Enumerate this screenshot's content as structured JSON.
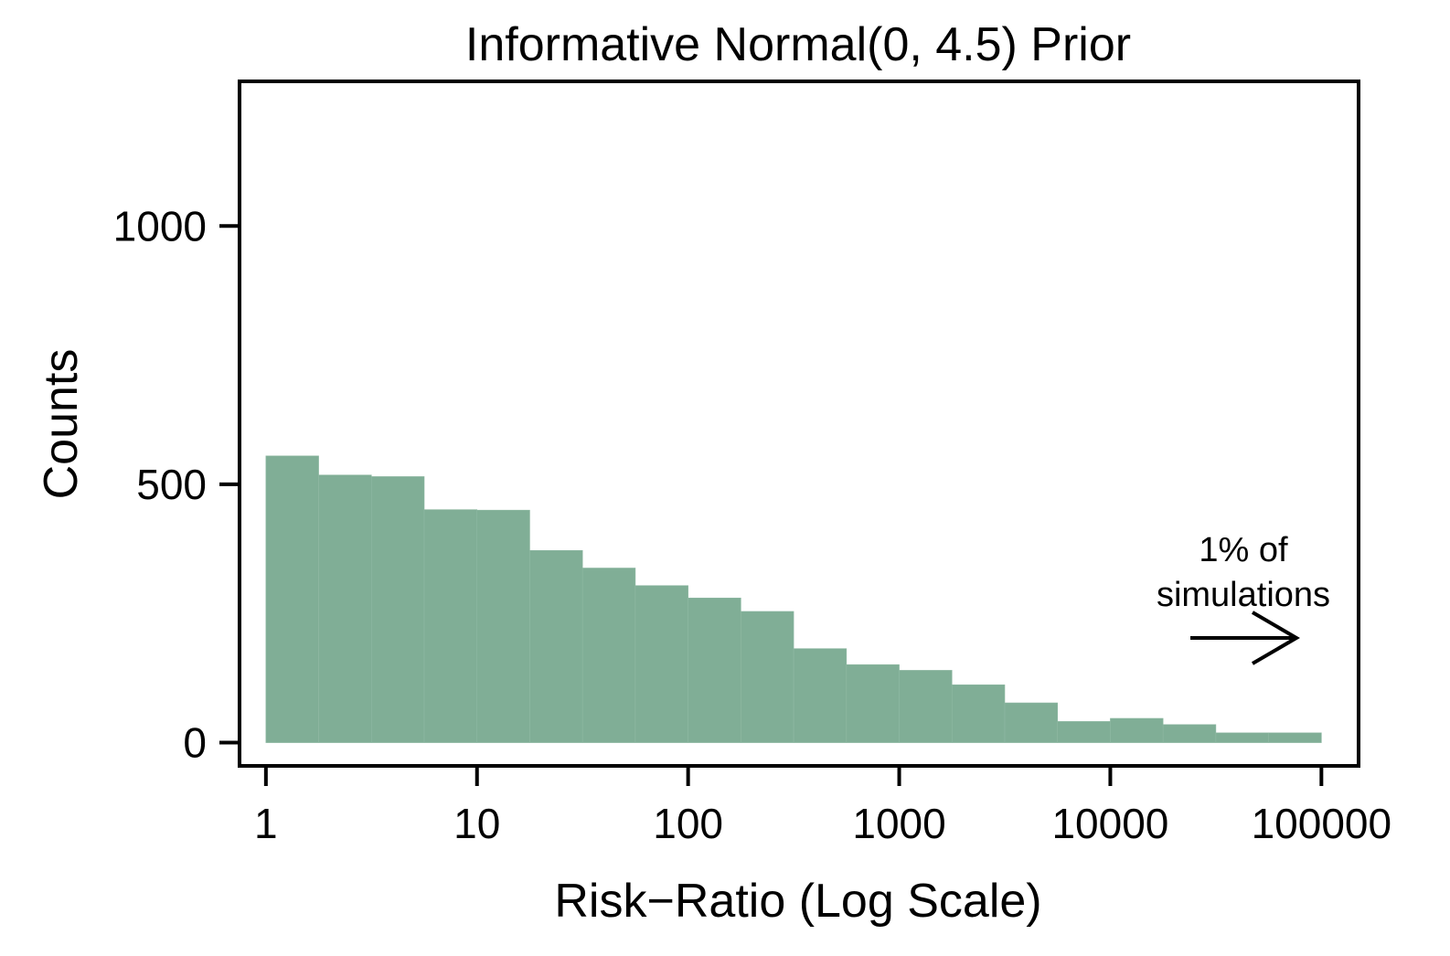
{
  "chart_data": {
    "type": "bar",
    "title": "Informative Normal(0, 4.5) Prior",
    "xlabel": "Risk−Ratio (Log Scale)",
    "ylabel": "Counts",
    "x_scale": "log10",
    "xlim": [
      0.75,
      150000
    ],
    "ylim": [
      -45,
      1280
    ],
    "xticks": [
      1,
      10,
      100,
      1000,
      10000,
      100000
    ],
    "xtick_labels": [
      "1",
      "10",
      "100",
      "1000",
      "10000",
      "100000"
    ],
    "yticks": [
      0,
      500,
      1000
    ],
    "ytick_labels": [
      "0",
      "500",
      "1000"
    ],
    "bin_edges": [
      1,
      1.778,
      3.162,
      5.623,
      10,
      17.78,
      31.62,
      56.23,
      100,
      177.8,
      316.2,
      562.3,
      1000,
      1778,
      3162,
      5623,
      10000,
      17783,
      31623,
      56234,
      100000
    ],
    "values": [
      555,
      518,
      515,
      451,
      450,
      372,
      338,
      304,
      280,
      254,
      182,
      151,
      140,
      112,
      77,
      41,
      47,
      35,
      19,
      19
    ],
    "bar_color": "#80ae96",
    "grid": false,
    "annotation": {
      "lines": [
        "1% of",
        "simulations"
      ],
      "arrow": "right"
    }
  }
}
